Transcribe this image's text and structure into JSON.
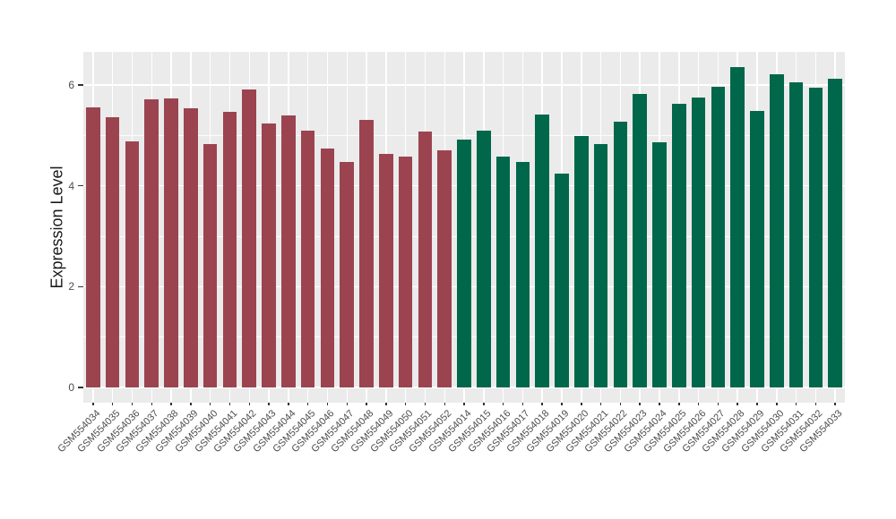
{
  "chart_data": {
    "type": "bar",
    "title": "",
    "xlabel": "",
    "ylabel": "Expression Level",
    "ylim": [
      -0.32,
      6.66
    ],
    "yticks": [
      0,
      2,
      4,
      6
    ],
    "minor_gridlines_at": [
      1,
      3,
      5
    ],
    "grid": true,
    "legend": false,
    "categories": [
      "GSM554034",
      "GSM554035",
      "GSM554036",
      "GSM554037",
      "GSM554038",
      "GSM554039",
      "GSM554040",
      "GSM554041",
      "GSM554042",
      "GSM554043",
      "GSM554044",
      "GSM554045",
      "GSM554046",
      "GSM554047",
      "GSM554048",
      "GSM554049",
      "GSM554050",
      "GSM554051",
      "GSM554052",
      "GSM554014",
      "GSM554015",
      "GSM554016",
      "GSM554017",
      "GSM554018",
      "GSM554019",
      "GSM554020",
      "GSM554021",
      "GSM554022",
      "GSM554023",
      "GSM554024",
      "GSM554025",
      "GSM554026",
      "GSM554027",
      "GSM554028",
      "GSM554029",
      "GSM554030",
      "GSM554031",
      "GSM554032",
      "GSM554033"
    ],
    "values": [
      5.55,
      5.37,
      4.88,
      5.71,
      5.73,
      5.54,
      4.83,
      5.47,
      5.91,
      5.24,
      5.4,
      5.1,
      4.74,
      4.47,
      5.31,
      4.63,
      4.58,
      5.08,
      4.71,
      4.92,
      5.1,
      4.58,
      4.48,
      5.41,
      4.25,
      4.99,
      4.83,
      5.27,
      5.83,
      4.86,
      5.62,
      5.75,
      5.97,
      6.36,
      5.48,
      6.21,
      6.06,
      5.95,
      6.13
    ],
    "bar_groups": [
      "a",
      "a",
      "a",
      "a",
      "a",
      "a",
      "a",
      "a",
      "a",
      "a",
      "a",
      "a",
      "a",
      "a",
      "a",
      "a",
      "a",
      "a",
      "a",
      "b",
      "b",
      "b",
      "b",
      "b",
      "b",
      "b",
      "b",
      "b",
      "b",
      "b",
      "b",
      "b",
      "b",
      "b",
      "b",
      "b",
      "b",
      "b",
      "b"
    ],
    "group_colors": {
      "a": "#9B4450",
      "b": "#00674B"
    }
  },
  "style": {
    "panel_background": "#EBEBEB",
    "gridline_color": "#FFFFFF",
    "axis_text_color": "#4D4D4D",
    "axis_title_color": "#1A1A1A",
    "tick_mark_color": "#333333"
  }
}
